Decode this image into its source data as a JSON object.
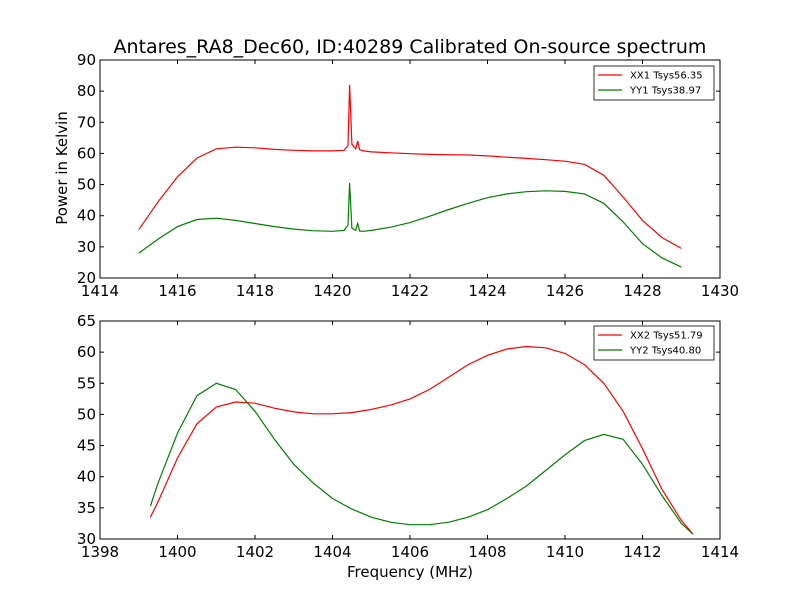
{
  "chart_data": [
    {
      "type": "line",
      "title": "Antares_RA8_Dec60, ID:40289 Calibrated On-source spectrum",
      "xlabel": "",
      "ylabel": "Power in Kelvin",
      "xlim": [
        1414,
        1430
      ],
      "ylim": [
        20,
        90
      ],
      "xticks": [
        1414,
        1416,
        1418,
        1420,
        1422,
        1424,
        1426,
        1428,
        1430
      ],
      "yticks": [
        20,
        30,
        40,
        50,
        60,
        70,
        80,
        90
      ],
      "grid": false,
      "legend_position": "top-right",
      "series": [
        {
          "name": "XX1 Tsys56.35",
          "color": "#ff0000",
          "x": [
            1415.0,
            1415.5,
            1416.0,
            1416.5,
            1417.0,
            1417.5,
            1418.0,
            1418.5,
            1419.0,
            1419.5,
            1420.0,
            1420.3,
            1420.4,
            1420.44,
            1420.5,
            1420.6,
            1420.65,
            1420.7,
            1420.8,
            1421.0,
            1421.5,
            1422.0,
            1422.5,
            1423.0,
            1423.5,
            1424.0,
            1424.5,
            1425.0,
            1425.5,
            1426.0,
            1426.5,
            1427.0,
            1427.5,
            1428.0,
            1428.5,
            1429.0
          ],
          "y": [
            35.5,
            44.5,
            52.5,
            58.5,
            61.5,
            62.0,
            61.8,
            61.3,
            61.0,
            60.8,
            60.8,
            61.0,
            62.5,
            82.0,
            63.0,
            61.5,
            64.0,
            61.2,
            60.8,
            60.5,
            60.2,
            59.9,
            59.7,
            59.6,
            59.5,
            59.2,
            58.8,
            58.4,
            58.0,
            57.5,
            56.5,
            53.0,
            46.0,
            38.5,
            33.0,
            29.5
          ]
        },
        {
          "name": "YY1 Tsys38.97",
          "color": "#008000",
          "x": [
            1415.0,
            1415.5,
            1416.0,
            1416.5,
            1417.0,
            1417.5,
            1418.0,
            1418.5,
            1419.0,
            1419.5,
            1420.0,
            1420.3,
            1420.4,
            1420.44,
            1420.5,
            1420.6,
            1420.65,
            1420.7,
            1420.8,
            1421.0,
            1421.5,
            1422.0,
            1422.5,
            1423.0,
            1423.5,
            1424.0,
            1424.5,
            1425.0,
            1425.5,
            1426.0,
            1426.5,
            1427.0,
            1427.5,
            1428.0,
            1428.5,
            1429.0
          ],
          "y": [
            28.0,
            32.5,
            36.5,
            38.8,
            39.2,
            38.5,
            37.5,
            36.5,
            35.7,
            35.2,
            35.0,
            35.3,
            37.0,
            50.5,
            36.0,
            35.3,
            37.5,
            35.1,
            35.0,
            35.3,
            36.3,
            37.8,
            39.8,
            42.0,
            44.0,
            45.8,
            47.0,
            47.7,
            48.0,
            47.8,
            47.0,
            44.0,
            38.0,
            31.0,
            26.5,
            23.5
          ]
        }
      ]
    },
    {
      "type": "line",
      "title": "",
      "xlabel": "Frequency (MHz)",
      "ylabel": "",
      "xlim": [
        1398,
        1414
      ],
      "ylim": [
        30,
        65
      ],
      "xticks": [
        1398,
        1400,
        1402,
        1404,
        1406,
        1408,
        1410,
        1412,
        1414
      ],
      "yticks": [
        30,
        35,
        40,
        45,
        50,
        55,
        60,
        65
      ],
      "grid": false,
      "legend_position": "top-right",
      "series": [
        {
          "name": "XX2 Tsys51.79",
          "color": "#ff0000",
          "x": [
            1399.3,
            1399.5,
            1400.0,
            1400.5,
            1401.0,
            1401.5,
            1402.0,
            1402.5,
            1403.0,
            1403.5,
            1404.0,
            1404.5,
            1405.0,
            1405.5,
            1406.0,
            1406.5,
            1407.0,
            1407.5,
            1408.0,
            1408.5,
            1409.0,
            1409.5,
            1410.0,
            1410.5,
            1411.0,
            1411.5,
            1412.0,
            1412.5,
            1413.0,
            1413.3
          ],
          "y": [
            33.5,
            36.0,
            43.0,
            48.5,
            51.2,
            52.0,
            51.8,
            51.0,
            50.4,
            50.1,
            50.1,
            50.3,
            50.8,
            51.5,
            52.5,
            54.0,
            56.0,
            58.0,
            59.5,
            60.5,
            60.9,
            60.7,
            59.8,
            58.0,
            55.0,
            50.5,
            44.5,
            38.0,
            33.0,
            30.8
          ]
        },
        {
          "name": "YY2 Tsys40.80",
          "color": "#008000",
          "x": [
            1399.3,
            1399.5,
            1400.0,
            1400.5,
            1401.0,
            1401.5,
            1402.0,
            1402.5,
            1403.0,
            1403.5,
            1404.0,
            1404.5,
            1405.0,
            1405.5,
            1406.0,
            1406.5,
            1407.0,
            1407.5,
            1408.0,
            1408.5,
            1409.0,
            1409.5,
            1410.0,
            1410.5,
            1411.0,
            1411.5,
            1412.0,
            1412.5,
            1413.0,
            1413.3
          ],
          "y": [
            35.3,
            39.0,
            47.0,
            53.0,
            55.0,
            54.0,
            50.5,
            46.0,
            42.0,
            39.0,
            36.5,
            34.8,
            33.5,
            32.7,
            32.3,
            32.3,
            32.7,
            33.5,
            34.7,
            36.5,
            38.5,
            41.0,
            43.5,
            45.8,
            46.8,
            46.0,
            42.0,
            37.0,
            32.5,
            30.8
          ]
        }
      ]
    }
  ]
}
